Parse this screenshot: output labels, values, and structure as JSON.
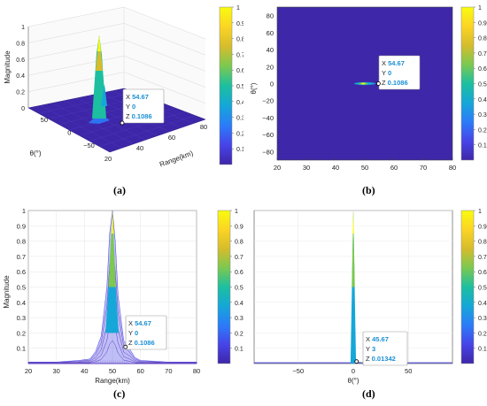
{
  "colormap": [
    "#3e26a8",
    "#4744e8",
    "#2b7cf9",
    "#15a7d8",
    "#1cbfa0",
    "#7bc950",
    "#d6bc2c",
    "#fbd524",
    "#f9fb0e"
  ],
  "colorbar_ticks": [
    "0.1",
    "0.2",
    "0.3",
    "0.4",
    "0.5",
    "0.6",
    "0.7",
    "0.8",
    "0.9",
    "1"
  ],
  "panels": [
    {
      "caption": "(a)",
      "type": "surface3d",
      "ylabel": "Magnitude",
      "xlabel": "Range(km)",
      "theta_label": "θ(°)",
      "z_ticks": [
        "0",
        "0.2",
        "0.4",
        "0.6",
        "0.8",
        "1"
      ],
      "range_ticks": [
        "20",
        "40",
        "60",
        "80"
      ],
      "theta_ticks": [
        "50",
        "0",
        "−50"
      ],
      "datatip": {
        "x_label": "X",
        "x": "54.67",
        "y_label": "Y",
        "y": "0",
        "z_label": "Z",
        "z": "0.1086"
      }
    },
    {
      "caption": "(b)",
      "type": "heatmap",
      "ylabel": "θ(°)",
      "x_ticks": [
        "20",
        "30",
        "40",
        "50",
        "60",
        "70",
        "80"
      ],
      "y_ticks": [
        "80",
        "60",
        "40",
        "20",
        "0",
        "−20",
        "−40",
        "−60",
        "−80"
      ],
      "datatip": {
        "x_label": "X",
        "x": "54.67",
        "y_label": "Y",
        "y": "0",
        "z_label": "Z",
        "z": "0.1086"
      }
    },
    {
      "caption": "(c)",
      "type": "range_profile",
      "ylabel": "Magnitude",
      "xlabel": "Range(km)",
      "x_ticks": [
        "20",
        "30",
        "40",
        "50",
        "60",
        "70",
        "80"
      ],
      "y_ticks": [
        "0.1",
        "0.2",
        "0.3",
        "0.4",
        "0.5",
        "0.6",
        "0.7",
        "0.8",
        "0.9",
        "1"
      ],
      "datatip": {
        "x_label": "X",
        "x": "54.67",
        "y_label": "Y",
        "y": "0",
        "z_label": "Z",
        "z": "0.1086"
      }
    },
    {
      "caption": "(d)",
      "type": "angle_profile",
      "xlabel": "θ(°)",
      "x_ticks": [
        "−50",
        "0",
        "50"
      ],
      "datatip": {
        "x_label": "X",
        "x": "45.67",
        "y_label": "Y",
        "y": "3",
        "z_label": "Z",
        "z": "0.01342"
      }
    }
  ],
  "chart_data": [
    {
      "type": "area",
      "title": "",
      "xlabel": "Range(km)",
      "ylabel": "Magnitude",
      "xlim": [
        20,
        80
      ],
      "ylim": [
        0,
        1
      ],
      "x": [
        20,
        30,
        38,
        42,
        44,
        46,
        48,
        49,
        50,
        51,
        52,
        54,
        56,
        58,
        60,
        70,
        80
      ],
      "values": [
        0.01,
        0.01,
        0.02,
        0.03,
        0.08,
        0.18,
        0.5,
        0.85,
        1.0,
        0.8,
        0.45,
        0.15,
        0.1,
        0.04,
        0.02,
        0.01,
        0.01
      ],
      "marker": {
        "x": 54.67,
        "y": 0,
        "z": 0.1086
      }
    },
    {
      "type": "heatmap",
      "title": "",
      "xlabel": "",
      "ylabel": "θ(°)",
      "xlim": [
        20,
        80
      ],
      "ylim": [
        -90,
        90
      ],
      "peak": {
        "x": 50,
        "y": 0,
        "value": 1
      },
      "marker": {
        "x": 54.67,
        "y": 0,
        "z": 0.1086
      }
    },
    {
      "type": "area",
      "title": "",
      "xlabel": "θ(°)",
      "ylabel": "",
      "xlim": [
        -90,
        90
      ],
      "ylim": [
        0,
        1
      ],
      "x": [
        -90,
        -10,
        -5,
        -2,
        0,
        2,
        5,
        10,
        90
      ],
      "values": [
        0.005,
        0.005,
        0.01,
        0.25,
        1.0,
        0.2,
        0.01,
        0.005,
        0.005
      ],
      "marker": {
        "x": 45.67,
        "y": 3,
        "z": 0.01342
      }
    }
  ]
}
